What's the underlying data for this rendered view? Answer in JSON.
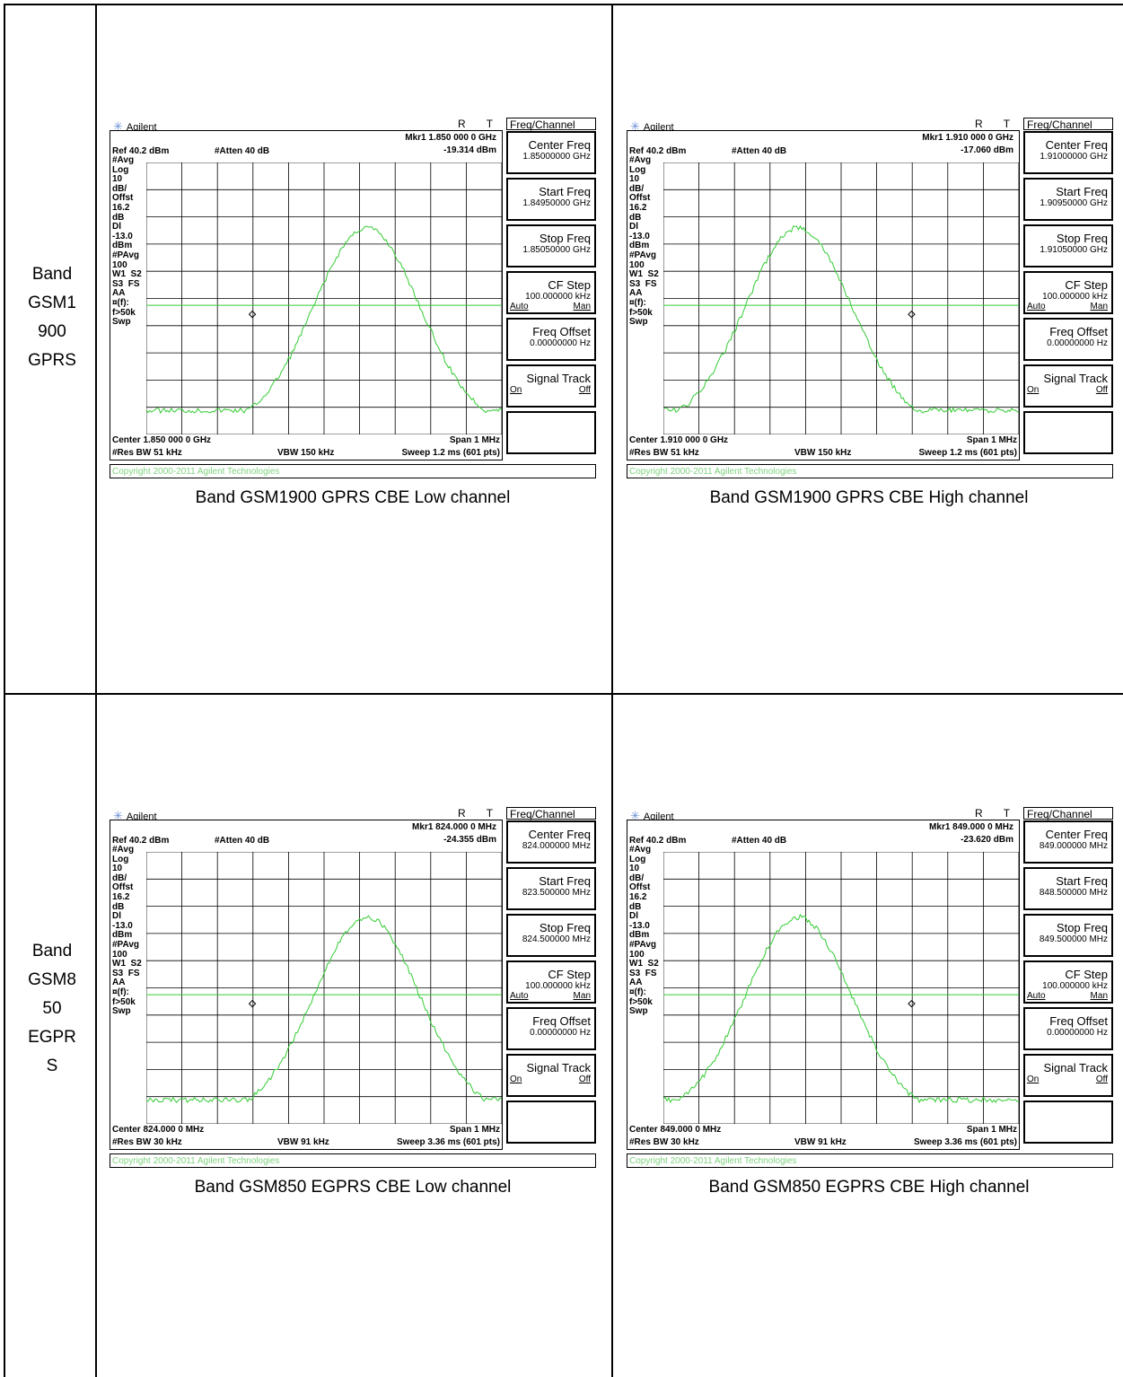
{
  "rows": [
    {
      "band_label_lines": [
        "Band",
        "GSM1",
        "900",
        "GPRS"
      ],
      "panels": [
        {
          "caption": "Band GSM1900 GPRS CBE Low channel",
          "brand": "Agilent",
          "rt": "R T",
          "mkr_line": "Mkr1  1.850 000 0 GHz",
          "mkr_value": "-19.314 dBm",
          "ref": "Ref 40.2 dBm",
          "atten": "#Atten 40 dB",
          "left_labels": [
            "#Avg",
            "Log",
            "10",
            "dB/",
            "Offst",
            "16.2",
            "dB",
            "Dl",
            "-13.0",
            "dBm",
            "#PAvg",
            "100",
            "W1  S2",
            "S3  FS",
            "AA",
            "¤(f):",
            "f>50k",
            "Swp"
          ],
          "center": "Center 1.850 000 0 GHz",
          "span": "Span 1 MHz",
          "res_bw": "#Res BW 51 kHz",
          "vbw": "VBW 150 kHz",
          "sweep": "Sweep 1.2 ms (601 pts)",
          "copyright": "Copyright 2000-2011 Agilent Technologies",
          "menu_title": "Freq/Channel",
          "keys": [
            {
              "label": "Center Freq",
              "sub": "1.85000000 GHz"
            },
            {
              "label": "Start Freq",
              "sub": "1.84950000 GHz"
            },
            {
              "label": "Stop Freq",
              "sub": "1.85050000 GHz"
            },
            {
              "label": "CF Step",
              "sub": "100.000000 kHz",
              "a": "Auto",
              "b": "Man"
            },
            {
              "label": "Freq Offset",
              "sub": "0.00000000 Hz"
            },
            {
              "label": "Signal Track",
              "a": "On",
              "b": "Off"
            }
          ],
          "trace_shape": "low",
          "marker_frac": 0.3
        },
        {
          "caption": "Band GSM1900 GPRS CBE High channel",
          "brand": "Agilent",
          "rt": "R T",
          "mkr_line": "Mkr1  1.910 000 0 GHz",
          "mkr_value": "-17.060 dBm",
          "ref": "Ref 40.2 dBm",
          "atten": "#Atten 40 dB",
          "left_labels": [
            "#Avg",
            "Log",
            "10",
            "dB/",
            "Offst",
            "16.2",
            "dB",
            "Dl",
            "-13.0",
            "dBm",
            "#PAvg",
            "100",
            "W1  S2",
            "S3  FS",
            "AA",
            "¤(f):",
            "f>50k",
            "Swp"
          ],
          "center": "Center 1.910 000 0 GHz",
          "span": "Span 1 MHz",
          "res_bw": "#Res BW 51 kHz",
          "vbw": "VBW 150 kHz",
          "sweep": "Sweep 1.2 ms (601 pts)",
          "copyright": "Copyright 2000-2011 Agilent Technologies",
          "menu_title": "Freq/Channel",
          "keys": [
            {
              "label": "Center Freq",
              "sub": "1.91000000 GHz"
            },
            {
              "label": "Start Freq",
              "sub": "1.90950000 GHz"
            },
            {
              "label": "Stop Freq",
              "sub": "1.91050000 GHz"
            },
            {
              "label": "CF Step",
              "sub": "100.000000 kHz",
              "a": "Auto",
              "b": "Man"
            },
            {
              "label": "Freq Offset",
              "sub": "0.00000000 Hz"
            },
            {
              "label": "Signal Track",
              "a": "On",
              "b": "Off"
            }
          ],
          "trace_shape": "high",
          "marker_frac": 0.7
        }
      ]
    },
    {
      "band_label_lines": [
        "Band",
        "GSM8",
        "50",
        "EGPR",
        "S"
      ],
      "panels": [
        {
          "caption": "Band GSM850 EGPRS CBE Low channel",
          "brand": "Agilent",
          "rt": "R T",
          "mkr_line": "Mkr1  824.000 0 MHz",
          "mkr_value": "-24.355 dBm",
          "ref": "Ref 40.2 dBm",
          "atten": "#Atten 40 dB",
          "left_labels": [
            "#Avg",
            "Log",
            "10",
            "dB/",
            "Offst",
            "16.2",
            "dB",
            "Dl",
            "-13.0",
            "dBm",
            "#PAvg",
            "100",
            "W1  S2",
            "S3  FS",
            "AA",
            "¤(f):",
            "f>50k",
            "Swp"
          ],
          "center": "Center 824.000 0 MHz",
          "span": "Span 1 MHz",
          "res_bw": "#Res BW 30 kHz",
          "vbw": "VBW 91 kHz",
          "sweep": "Sweep 3.36 ms (601 pts)",
          "copyright": "Copyright 2000-2011 Agilent Technologies",
          "menu_title": "Freq/Channel",
          "keys": [
            {
              "label": "Center Freq",
              "sub": "824.000000 MHz"
            },
            {
              "label": "Start Freq",
              "sub": "823.500000 MHz"
            },
            {
              "label": "Stop Freq",
              "sub": "824.500000 MHz"
            },
            {
              "label": "CF Step",
              "sub": "100.000000 kHz",
              "a": "Auto",
              "b": "Man"
            },
            {
              "label": "Freq Offset",
              "sub": "0.00000000 Hz"
            },
            {
              "label": "Signal Track",
              "a": "On",
              "b": "Off"
            }
          ],
          "trace_shape": "low",
          "marker_frac": 0.3
        },
        {
          "caption": "Band GSM850 EGPRS CBE High channel",
          "brand": "Agilent",
          "rt": "R T",
          "mkr_line": "Mkr1  849.000 0 MHz",
          "mkr_value": "-23.620 dBm",
          "ref": "Ref 40.2 dBm",
          "atten": "#Atten 40 dB",
          "left_labels": [
            "#Avg",
            "Log",
            "10",
            "dB/",
            "Offst",
            "16.2",
            "dB",
            "Dl",
            "-13.0",
            "dBm",
            "#PAvg",
            "100",
            "W1  S2",
            "S3  FS",
            "AA",
            "¤(f):",
            "f>50k",
            "Swp"
          ],
          "center": "Center 849.000 0 MHz",
          "span": "Span 1 MHz",
          "res_bw": "#Res BW 30 kHz",
          "vbw": "VBW 91 kHz",
          "sweep": "Sweep 3.36 ms (601 pts)",
          "copyright": "Copyright 2000-2011 Agilent Technologies",
          "menu_title": "Freq/Channel",
          "keys": [
            {
              "label": "Center Freq",
              "sub": "849.000000 MHz"
            },
            {
              "label": "Start Freq",
              "sub": "848.500000 MHz"
            },
            {
              "label": "Stop Freq",
              "sub": "849.500000 MHz"
            },
            {
              "label": "CF Step",
              "sub": "100.000000 kHz",
              "a": "Auto",
              "b": "Man"
            },
            {
              "label": "Freq Offset",
              "sub": "0.00000000 Hz"
            },
            {
              "label": "Signal Track",
              "a": "On",
              "b": "Off"
            }
          ],
          "trace_shape": "high",
          "marker_frac": 0.7
        }
      ]
    }
  ],
  "colors": {
    "trace": "#33cc33",
    "grid": "#000000",
    "copyright": "#7fd27f",
    "logo": "#6a8fd6"
  }
}
